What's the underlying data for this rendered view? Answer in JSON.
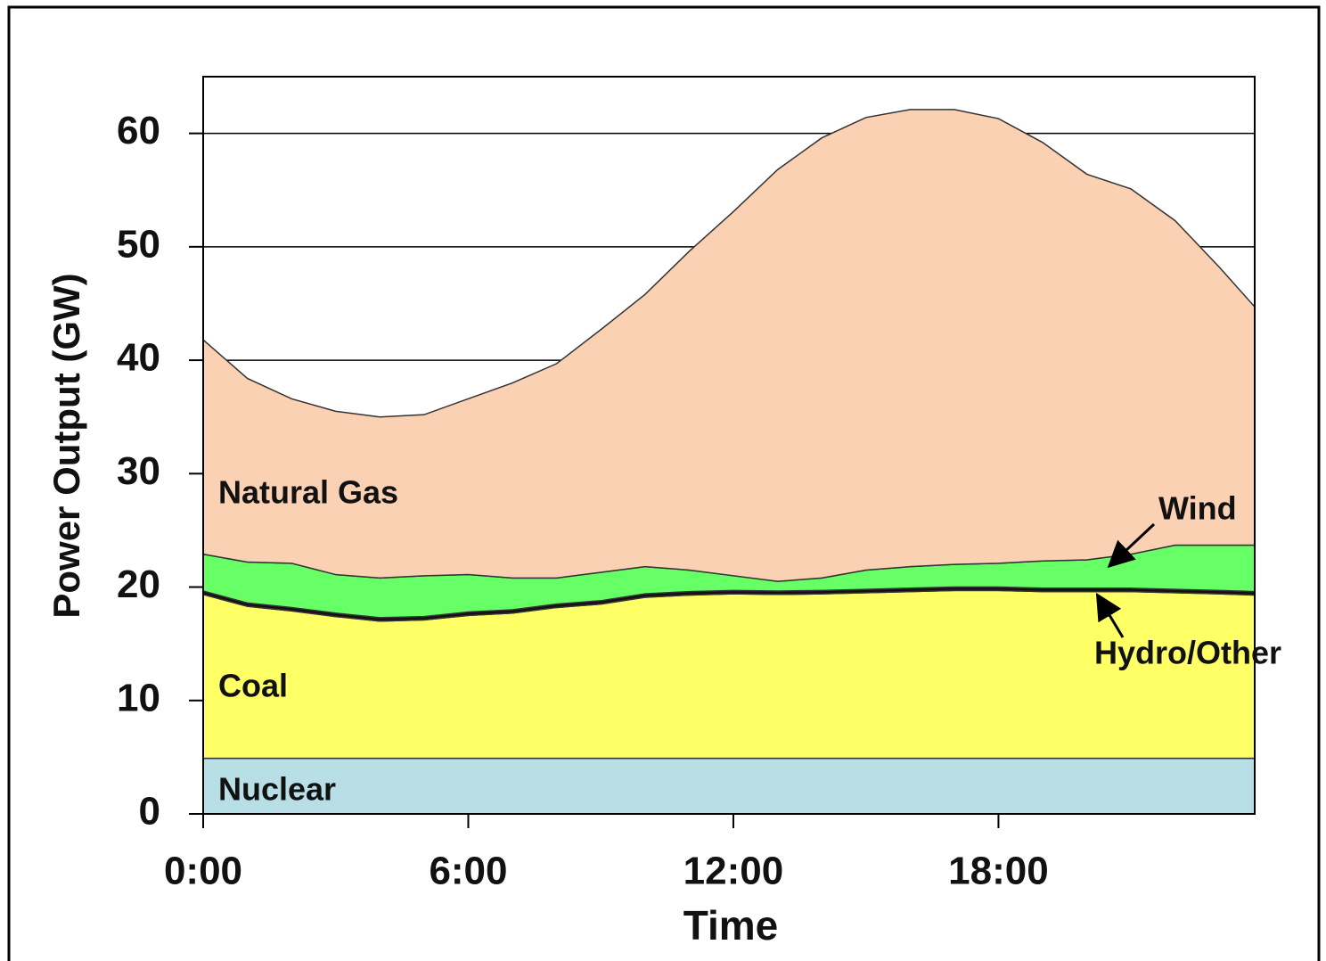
{
  "chart_data": {
    "type": "stacked_area",
    "x_label": "Time",
    "y_label": "Power Output (GW)",
    "x": [
      0,
      1,
      2,
      3,
      4,
      5,
      6,
      7,
      8,
      9,
      10,
      11,
      12,
      13,
      14,
      15,
      16,
      17,
      18,
      19,
      20,
      21,
      22,
      23,
      23.8
    ],
    "xlim": [
      0,
      23.8
    ],
    "xticks": [
      {
        "value": 0,
        "label": "0:00"
      },
      {
        "value": 6,
        "label": "6:00"
      },
      {
        "value": 12,
        "label": "12:00"
      },
      {
        "value": 18,
        "label": "18:00"
      }
    ],
    "ylim": [
      0,
      65
    ],
    "yticks": [
      0,
      10,
      20,
      30,
      40,
      50,
      60
    ],
    "grid": true,
    "series": [
      {
        "name": "Nuclear",
        "color": "#b8dfe6",
        "values": [
          4.9,
          4.9,
          4.9,
          4.9,
          4.9,
          4.9,
          4.9,
          4.9,
          4.9,
          4.9,
          4.9,
          4.9,
          4.9,
          4.9,
          4.9,
          4.9,
          4.9,
          4.9,
          4.9,
          4.9,
          4.9,
          4.9,
          4.9,
          4.9,
          4.9
        ]
      },
      {
        "name": "Coal",
        "color": "#ffff66",
        "values": [
          14.45,
          13.4,
          13.0,
          12.5,
          12.1,
          12.2,
          12.6,
          12.8,
          13.3,
          13.6,
          14.2,
          14.4,
          14.5,
          14.45,
          14.5,
          14.6,
          14.7,
          14.8,
          14.8,
          14.7,
          14.7,
          14.7,
          14.6,
          14.5,
          14.4
        ]
      },
      {
        "name": "Hydro/Other",
        "color": "#111111",
        "values": [
          0.3,
          0.3,
          0.3,
          0.3,
          0.3,
          0.3,
          0.3,
          0.3,
          0.3,
          0.3,
          0.3,
          0.3,
          0.3,
          0.3,
          0.3,
          0.3,
          0.3,
          0.3,
          0.3,
          0.3,
          0.3,
          0.3,
          0.3,
          0.3,
          0.3
        ]
      },
      {
        "name": "Wind",
        "color": "#66ff66",
        "values": [
          3.25,
          3.6,
          3.9,
          3.4,
          3.5,
          3.6,
          3.3,
          2.8,
          2.3,
          2.5,
          2.4,
          1.9,
          1.3,
          0.85,
          1.1,
          1.7,
          1.9,
          2.0,
          2.1,
          2.4,
          2.5,
          3.0,
          3.9,
          4.0,
          4.1
        ]
      },
      {
        "name": "Natural Gas",
        "color": "#fbd1b3",
        "values": [
          18.9,
          16.2,
          14.5,
          14.4,
          14.2,
          14.2,
          15.5,
          17.2,
          18.9,
          21.4,
          24.0,
          28.1,
          32.1,
          36.3,
          38.8,
          39.9,
          40.3,
          40.1,
          39.2,
          36.9,
          34.0,
          32.2,
          28.6,
          24.5,
          21.0
        ]
      }
    ]
  }
}
